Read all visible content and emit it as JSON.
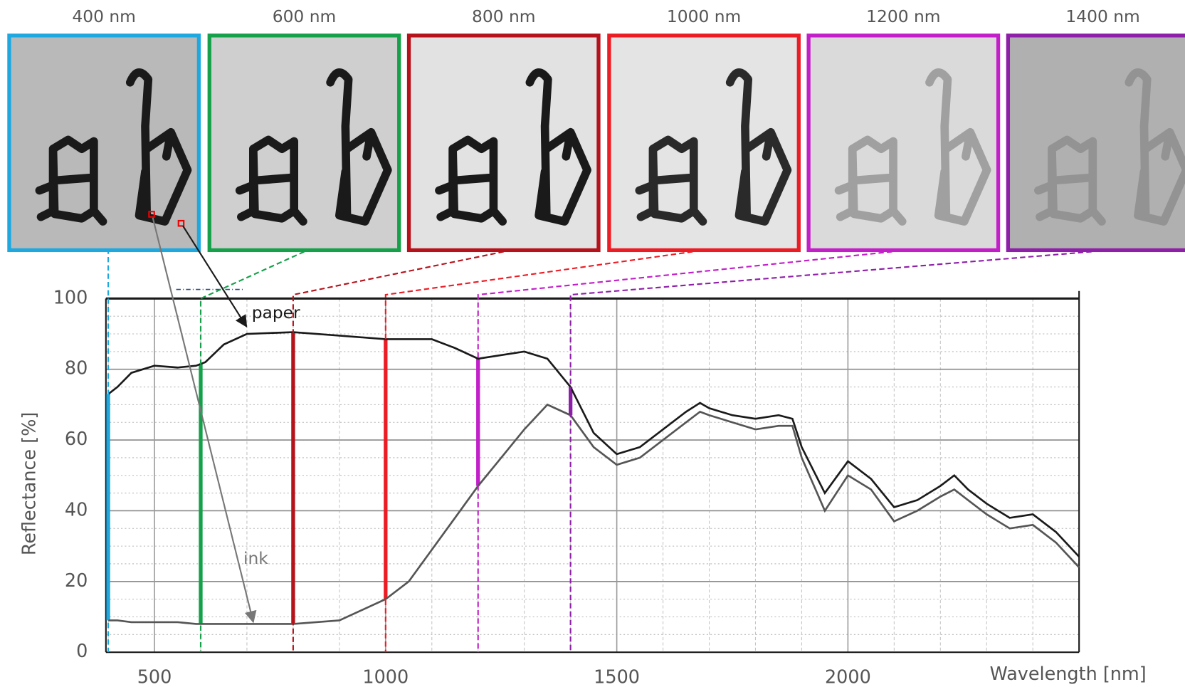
{
  "chart_data": {
    "type": "line",
    "x_label": "Wavelength [nm]",
    "y_label": "Reflectance [%]",
    "xlim": [
      395,
      2500
    ],
    "ylim": [
      0,
      100
    ],
    "xticks": [
      500,
      1000,
      1500,
      2000
    ],
    "yticks": [
      0,
      20,
      40,
      60,
      80,
      100
    ],
    "grid": true,
    "series": [
      {
        "name": "paper",
        "color": "#1a1a1a",
        "x": [
          400,
          420,
          450,
          500,
          550,
          590,
          610,
          650,
          700,
          800,
          900,
          1000,
          1050,
          1100,
          1150,
          1200,
          1250,
          1300,
          1350,
          1400,
          1450,
          1500,
          1550,
          1600,
          1650,
          1680,
          1700,
          1750,
          1800,
          1850,
          1880,
          1900,
          1950,
          2000,
          2050,
          2100,
          2150,
          2200,
          2230,
          2260,
          2300,
          2350,
          2400,
          2450,
          2500
        ],
        "values": [
          73,
          75,
          79,
          81,
          80.5,
          81,
          82,
          87,
          90,
          90.5,
          89.5,
          88.5,
          88.5,
          88.5,
          86,
          83,
          84,
          85,
          83,
          75,
          62,
          56,
          58,
          63,
          68,
          70.5,
          69,
          67,
          66,
          67,
          66,
          58,
          45,
          54,
          49,
          41,
          43,
          47,
          50,
          46,
          42,
          38,
          39,
          34,
          27
        ]
      },
      {
        "name": "ink",
        "color": "#555555",
        "x": [
          400,
          420,
          450,
          500,
          550,
          590,
          610,
          650,
          700,
          800,
          900,
          1000,
          1050,
          1100,
          1150,
          1200,
          1250,
          1300,
          1350,
          1400,
          1450,
          1500,
          1550,
          1600,
          1650,
          1680,
          1700,
          1750,
          1800,
          1850,
          1880,
          1900,
          1950,
          2000,
          2050,
          2100,
          2150,
          2200,
          2230,
          2260,
          2300,
          2350,
          2400,
          2450,
          2500
        ],
        "values": [
          9,
          9,
          8.5,
          8.5,
          8.5,
          8,
          8,
          8,
          8,
          8,
          9,
          15,
          20,
          29,
          38,
          47,
          55,
          63,
          70,
          67,
          58,
          53,
          55,
          60,
          65,
          68,
          67,
          65,
          63,
          64,
          64,
          55,
          40,
          50,
          46,
          37,
          40,
          44,
          46,
          43,
          39,
          35,
          36,
          31,
          24
        ]
      }
    ],
    "markers": [
      {
        "label": "400 nm",
        "wavelength": 400,
        "color": "#1ea8e0",
        "image_background": "#b9b9b9",
        "image_ink": "#1a1a1a"
      },
      {
        "label": "600 nm",
        "wavelength": 600,
        "color": "#15a04a",
        "image_background": "#cfcfcf",
        "image_ink": "#1a1a1a"
      },
      {
        "label": "800 nm",
        "wavelength": 800,
        "color": "#b5121b",
        "image_background": "#e2e2e2",
        "image_ink": "#1a1a1a"
      },
      {
        "label": "1000 nm",
        "wavelength": 1000,
        "color": "#ec1c24",
        "image_background": "#e4e4e4",
        "image_ink": "#2a2a2a"
      },
      {
        "label": "1200 nm",
        "wavelength": 1200,
        "color": "#c21fc9",
        "image_background": "#dadada",
        "image_ink": "#a0a0a0"
      },
      {
        "label": "1400 nm",
        "wavelength": 1400,
        "color": "#8e1fa8",
        "image_background": "#b0b0b0",
        "image_ink": "#939393"
      }
    ]
  }
}
